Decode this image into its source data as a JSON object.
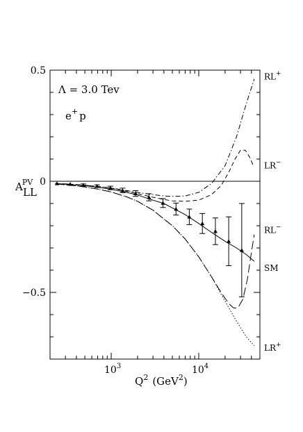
{
  "chart_data": {
    "type": "line",
    "xscale": "log",
    "xlim": [
      200,
      50000
    ],
    "ylim": [
      -0.8,
      0.5
    ],
    "xlabel": {
      "main": "Q",
      "sup": "2",
      "unit": "(GeV",
      "unit_sup": "2",
      "close": ")"
    },
    "ylabel": {
      "main": "A",
      "sup": "PV",
      "sub": "LL"
    },
    "x_ticks": [
      {
        "value": 1000,
        "base": "10",
        "exp": "3"
      },
      {
        "value": 10000,
        "base": "10",
        "exp": "4"
      }
    ],
    "y_ticks": [
      {
        "value": 0.5,
        "label": "0.5"
      },
      {
        "value": 0,
        "label": "0"
      },
      {
        "value": -0.5,
        "label": "−0.5"
      }
    ],
    "annotations": {
      "lambda_label": "Λ = 3.0 Tev",
      "beam_main": "e",
      "beam_sup": "+",
      "beam_tail": "p"
    },
    "reference_line_y": 0,
    "series": [
      {
        "name": "RL+",
        "style": "dash-dot",
        "label": {
          "main": "RL",
          "sup": "+",
          "y": 0.47
        },
        "x": [
          230,
          300,
          400,
          500,
          700,
          1000,
          1500,
          2000,
          3000,
          4000,
          5000,
          7000,
          10000,
          14000,
          20000,
          27000,
          35000,
          43000
        ],
        "y": [
          -0.01,
          -0.012,
          -0.015,
          -0.018,
          -0.023,
          -0.03,
          -0.042,
          -0.05,
          -0.06,
          -0.066,
          -0.068,
          -0.066,
          -0.05,
          -0.01,
          0.07,
          0.2,
          0.35,
          0.46
        ]
      },
      {
        "name": "LR−",
        "style": "dashed",
        "label": {
          "main": "LR",
          "sup": "−",
          "y": 0.07
        },
        "x": [
          230,
          300,
          400,
          500,
          700,
          1000,
          1500,
          2000,
          3000,
          4000,
          5000,
          7000,
          10000,
          14000,
          18000,
          22000,
          26000,
          30000,
          34000,
          38000,
          42000
        ],
        "y": [
          -0.01,
          -0.012,
          -0.015,
          -0.018,
          -0.023,
          -0.031,
          -0.045,
          -0.056,
          -0.072,
          -0.082,
          -0.088,
          -0.09,
          -0.085,
          -0.06,
          -0.02,
          0.04,
          0.1,
          0.14,
          0.14,
          0.11,
          0.07
        ]
      },
      {
        "name": "RL−",
        "style": "long-dash",
        "label": {
          "main": "RL",
          "sup": "−",
          "y": -0.22
        },
        "x": [
          230,
          300,
          400,
          500,
          700,
          1000,
          1500,
          2000,
          3000,
          4000,
          5000,
          7000,
          10000,
          14000,
          18000,
          22000,
          25000,
          28000,
          32000,
          36000,
          40000,
          43000
        ],
        "y": [
          -0.012,
          -0.016,
          -0.021,
          -0.026,
          -0.035,
          -0.048,
          -0.07,
          -0.09,
          -0.13,
          -0.17,
          -0.2,
          -0.26,
          -0.34,
          -0.43,
          -0.5,
          -0.55,
          -0.57,
          -0.57,
          -0.53,
          -0.44,
          -0.32,
          -0.24
        ]
      },
      {
        "name": "SM",
        "style": "solid",
        "label": {
          "main": "SM",
          "sup": "",
          "y": -0.39
        },
        "x": [
          230,
          300,
          400,
          500,
          700,
          1000,
          1500,
          2000,
          3000,
          4000,
          5000,
          7000,
          10000,
          14000,
          20000,
          27000,
          35000,
          43000
        ],
        "y": [
          -0.01,
          -0.013,
          -0.017,
          -0.02,
          -0.027,
          -0.036,
          -0.05,
          -0.062,
          -0.085,
          -0.1,
          -0.12,
          -0.15,
          -0.19,
          -0.23,
          -0.27,
          -0.3,
          -0.33,
          -0.36
        ]
      },
      {
        "name": "LR+",
        "style": "dotted",
        "label": {
          "main": "LR",
          "sup": "+",
          "y": -0.75
        },
        "x": [
          230,
          300,
          400,
          500,
          700,
          1000,
          1500,
          2000,
          3000,
          4000,
          5000,
          7000,
          10000,
          14000,
          20000,
          27000,
          35000,
          43000
        ],
        "y": [
          -0.012,
          -0.016,
          -0.021,
          -0.026,
          -0.035,
          -0.048,
          -0.07,
          -0.09,
          -0.13,
          -0.17,
          -0.2,
          -0.26,
          -0.34,
          -0.43,
          -0.54,
          -0.63,
          -0.7,
          -0.74
        ]
      }
    ],
    "data_points": {
      "name": "SM",
      "x": [
        240,
        340,
        480,
        690,
        980,
        1350,
        1900,
        2700,
        3900,
        5500,
        7800,
        11000,
        15500,
        22000,
        31000
      ],
      "y": [
        -0.01,
        -0.013,
        -0.017,
        -0.022,
        -0.03,
        -0.041,
        -0.055,
        -0.072,
        -0.098,
        -0.125,
        -0.16,
        -0.19,
        -0.225,
        -0.27,
        -0.31
      ],
      "err": [
        0.003,
        0.004,
        0.005,
        0.006,
        0.008,
        0.01,
        0.013,
        0.016,
        0.02,
        0.027,
        0.035,
        0.045,
        0.06,
        0.11,
        0.21
      ]
    }
  }
}
